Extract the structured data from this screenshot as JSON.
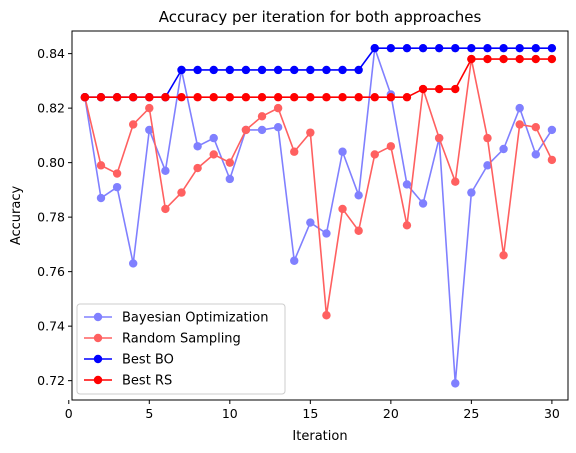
{
  "chart_data": {
    "type": "line",
    "title": "Accuracy per iteration for both approaches",
    "xlabel": "Iteration",
    "ylabel": "Accuracy",
    "xlim": [
      0.2,
      31.0
    ],
    "ylim": [
      0.7129,
      0.8483
    ],
    "xticks": [
      0,
      5,
      10,
      15,
      20,
      25,
      30
    ],
    "xtick_labels": [
      "0",
      "5",
      "10",
      "15",
      "20",
      "25",
      "30"
    ],
    "yticks": [
      0.72,
      0.74,
      0.76,
      0.78,
      0.8,
      0.82,
      0.84
    ],
    "ytick_labels": [
      "0.72",
      "0.74",
      "0.76",
      "0.78",
      "0.80",
      "0.82",
      "0.84"
    ],
    "grid": false,
    "legend_position": "lower-left",
    "x": [
      1,
      2,
      3,
      4,
      5,
      6,
      7,
      8,
      9,
      10,
      11,
      12,
      13,
      14,
      15,
      16,
      17,
      18,
      19,
      20,
      21,
      22,
      23,
      24,
      25,
      26,
      27,
      28,
      29,
      30
    ],
    "series": [
      {
        "name": "Bayesian Optimization",
        "color": "#8080ff",
        "values": [
          0.824,
          0.787,
          0.791,
          0.763,
          0.812,
          0.797,
          0.834,
          0.806,
          0.809,
          0.794,
          0.812,
          0.812,
          0.813,
          0.764,
          0.778,
          0.774,
          0.804,
          0.788,
          0.842,
          0.825,
          0.792,
          0.785,
          0.809,
          0.719,
          0.789,
          0.799,
          0.805,
          0.82,
          0.803,
          0.812
        ]
      },
      {
        "name": "Random Sampling",
        "color": "#ff6060",
        "values": [
          0.824,
          0.799,
          0.796,
          0.814,
          0.82,
          0.783,
          0.789,
          0.798,
          0.803,
          0.8,
          0.812,
          0.817,
          0.82,
          0.804,
          0.811,
          0.744,
          0.783,
          0.775,
          0.803,
          0.806,
          0.777,
          0.827,
          0.809,
          0.793,
          0.838,
          0.809,
          0.766,
          0.814,
          0.813,
          0.801
        ]
      },
      {
        "name": "Best BO",
        "color": "#0000ff",
        "values": [
          0.824,
          0.824,
          0.824,
          0.824,
          0.824,
          0.824,
          0.834,
          0.834,
          0.834,
          0.834,
          0.834,
          0.834,
          0.834,
          0.834,
          0.834,
          0.834,
          0.834,
          0.834,
          0.842,
          0.842,
          0.842,
          0.842,
          0.842,
          0.842,
          0.842,
          0.842,
          0.842,
          0.842,
          0.842,
          0.842
        ]
      },
      {
        "name": "Best RS",
        "color": "#ff0000",
        "values": [
          0.824,
          0.824,
          0.824,
          0.824,
          0.824,
          0.824,
          0.824,
          0.824,
          0.824,
          0.824,
          0.824,
          0.824,
          0.824,
          0.824,
          0.824,
          0.824,
          0.824,
          0.824,
          0.824,
          0.824,
          0.824,
          0.827,
          0.827,
          0.827,
          0.838,
          0.838,
          0.838,
          0.838,
          0.838,
          0.838
        ]
      }
    ]
  }
}
